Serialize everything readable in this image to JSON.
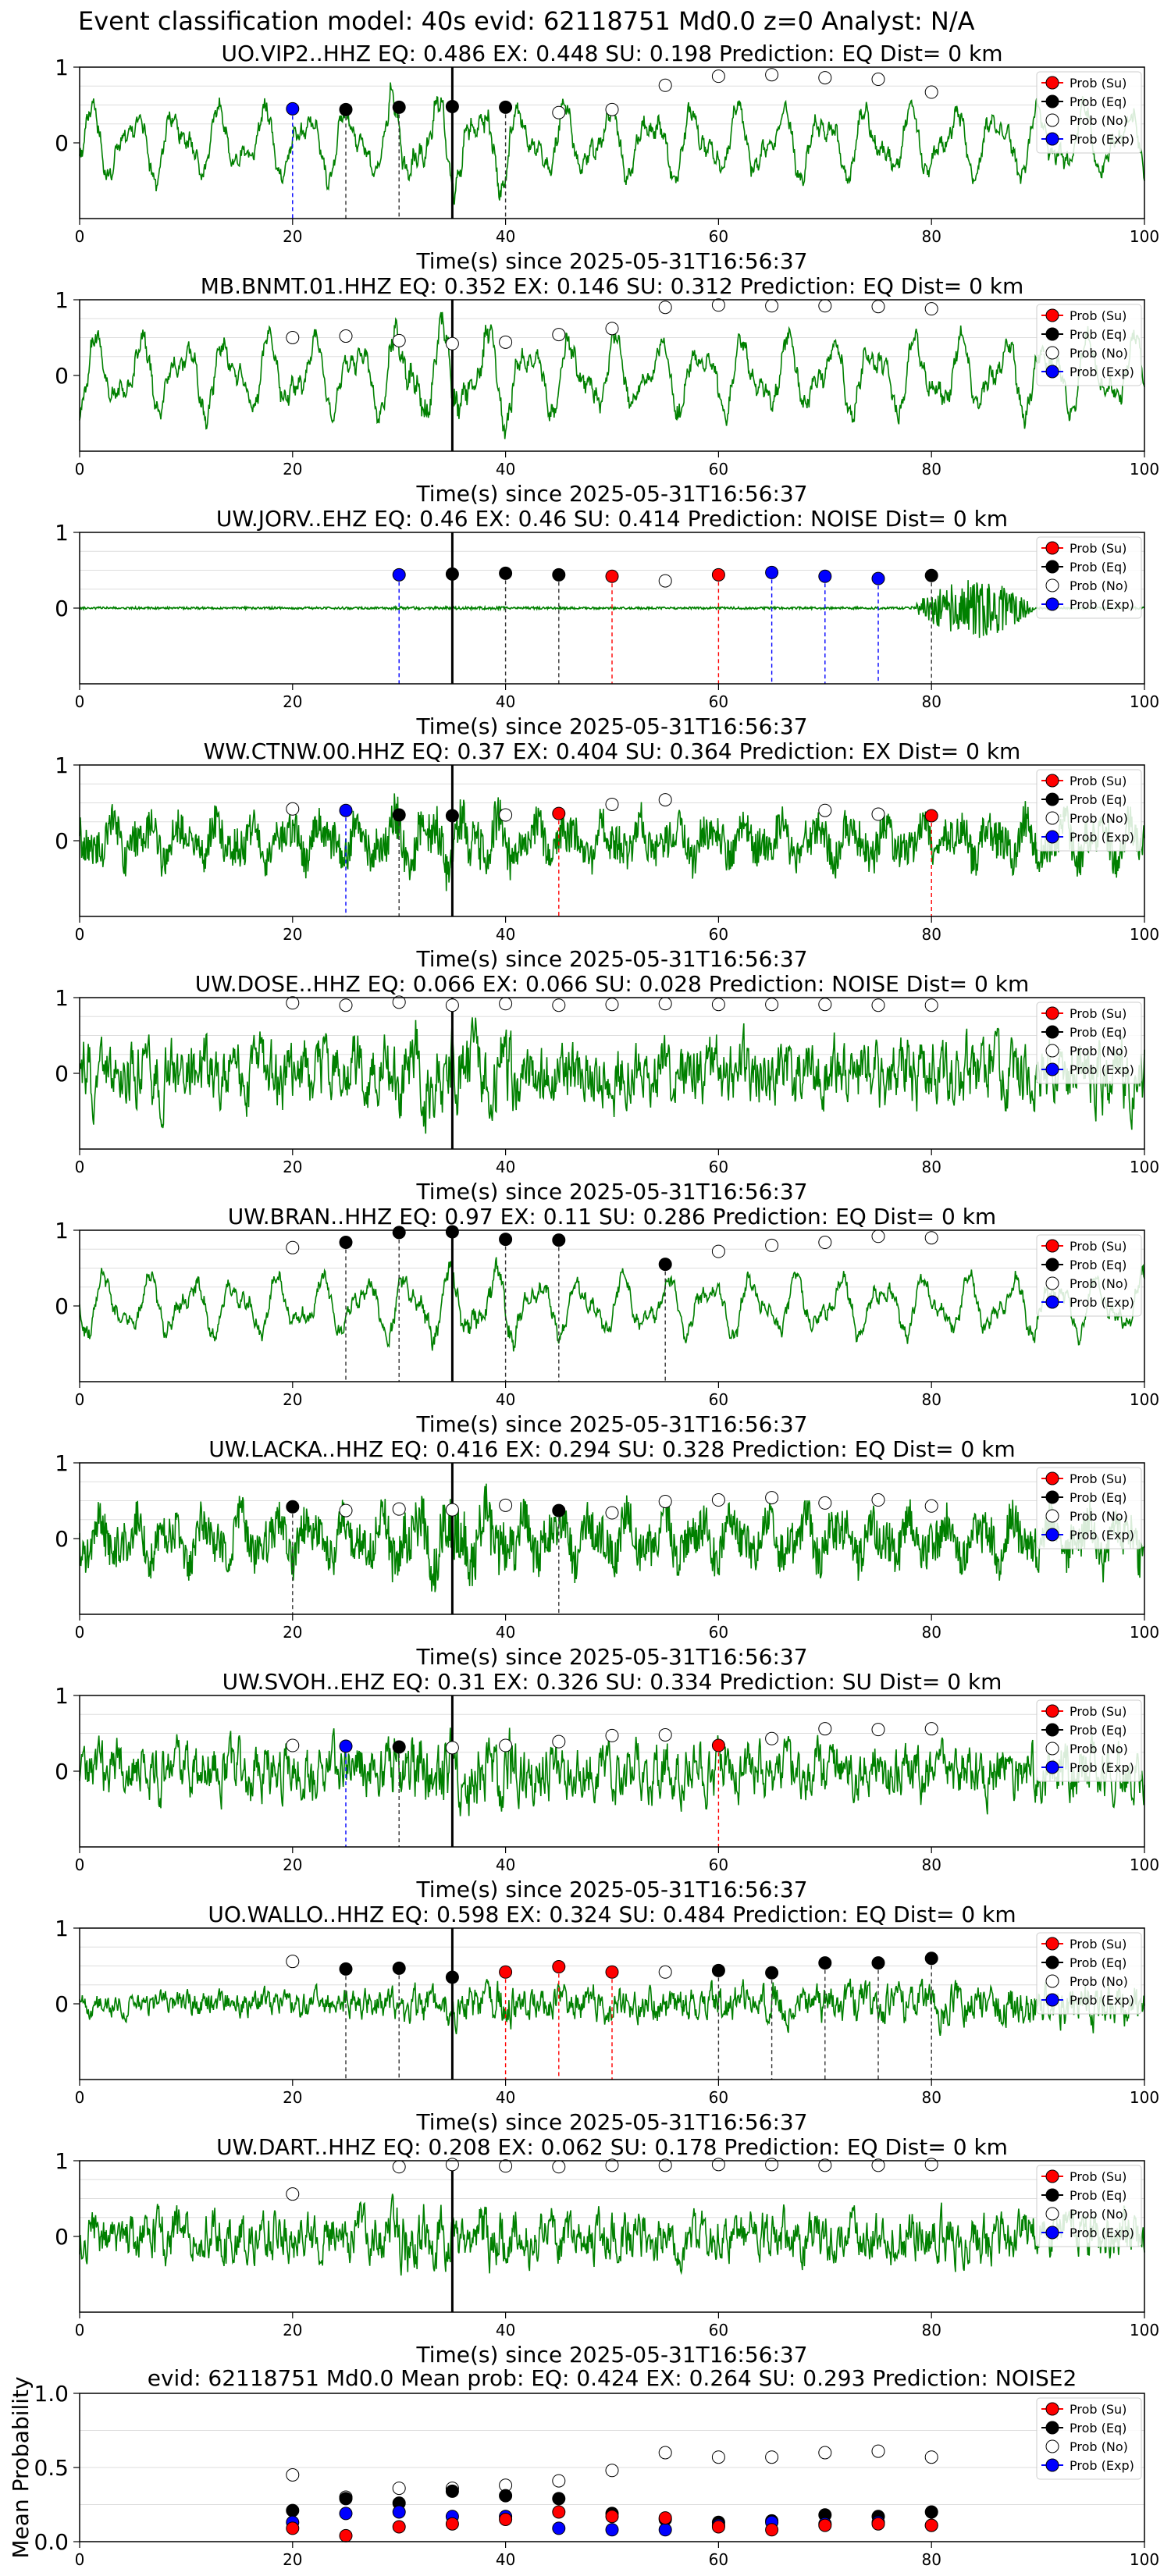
{
  "figure_title": "Event classification model: 40s evid: 62118751 Md0.0 z=0 Analyst: N/A",
  "legend": [
    "Prob (Su)",
    "Prob (Eq)",
    "Prob (No)",
    "Prob (Exp)"
  ],
  "colors": {
    "waveform": "#008000",
    "su": "#ff0000",
    "eq": "#000000",
    "no": "#ffffff",
    "exp": "#0000ff"
  },
  "chart_data": [
    {
      "type": "line",
      "title": "UO.VIP2..HHZ   EQ: 0.486  EX: 0.448  SU: 0.198   Prediction: EQ    Dist= 0 km",
      "xlabel": "Time(s) since 2025-05-31T16:56:37",
      "xlim": [
        0,
        100
      ],
      "ylim": [
        -1,
        1
      ],
      "xticks": [
        "0",
        "20",
        "40",
        "60",
        "80",
        "100"
      ],
      "yticks": [
        "0",
        "1"
      ],
      "onset_s": 35,
      "waveform": {
        "style": "smooth",
        "amplitude": 0.6,
        "seed": 3
      },
      "windows": [
        {
          "t": 20,
          "class": "exp",
          "prob": 0.45
        },
        {
          "t": 25,
          "class": "eq",
          "prob": 0.44
        },
        {
          "t": 30,
          "class": "eq",
          "prob": 0.47
        },
        {
          "t": 35,
          "class": "eq",
          "prob": 0.48
        },
        {
          "t": 40,
          "class": "eq",
          "prob": 0.47
        },
        {
          "t": 45,
          "class": "no",
          "prob": 0.4
        },
        {
          "t": 50,
          "class": "no",
          "prob": 0.44
        },
        {
          "t": 55,
          "class": "no",
          "prob": 0.76
        },
        {
          "t": 60,
          "class": "no",
          "prob": 0.88
        },
        {
          "t": 65,
          "class": "no",
          "prob": 0.9
        },
        {
          "t": 70,
          "class": "no",
          "prob": 0.86
        },
        {
          "t": 75,
          "class": "no",
          "prob": 0.84
        },
        {
          "t": 80,
          "class": "no",
          "prob": 0.67
        }
      ]
    },
    {
      "type": "line",
      "title": "MB.BNMT.01.HHZ   EQ: 0.352  EX: 0.146  SU: 0.312   Prediction: EQ    Dist= 0 km",
      "xlabel": "Time(s) since 2025-05-31T16:56:37",
      "xlim": [
        0,
        100
      ],
      "ylim": [
        -1,
        1
      ],
      "xticks": [
        "0",
        "20",
        "40",
        "60",
        "80",
        "100"
      ],
      "yticks": [
        "0",
        "1"
      ],
      "onset_s": 35,
      "waveform": {
        "style": "smooth",
        "amplitude": 0.65,
        "seed": 7
      },
      "windows": [
        {
          "t": 20,
          "class": "no",
          "prob": 0.5
        },
        {
          "t": 25,
          "class": "no",
          "prob": 0.52
        },
        {
          "t": 30,
          "class": "no",
          "prob": 0.46
        },
        {
          "t": 35,
          "class": "no",
          "prob": 0.42
        },
        {
          "t": 40,
          "class": "no",
          "prob": 0.44
        },
        {
          "t": 45,
          "class": "no",
          "prob": 0.54
        },
        {
          "t": 50,
          "class": "no",
          "prob": 0.62
        },
        {
          "t": 55,
          "class": "no",
          "prob": 0.9
        },
        {
          "t": 60,
          "class": "no",
          "prob": 0.93
        },
        {
          "t": 65,
          "class": "no",
          "prob": 0.92
        },
        {
          "t": 70,
          "class": "no",
          "prob": 0.92
        },
        {
          "t": 75,
          "class": "no",
          "prob": 0.91
        },
        {
          "t": 80,
          "class": "no",
          "prob": 0.88
        }
      ]
    },
    {
      "type": "line",
      "title": "UW.JORV..EHZ   EQ: 0.46  EX: 0.46  SU: 0.414   Prediction: NOISE    Dist= 0 km",
      "xlabel": "Time(s) since 2025-05-31T16:56:37",
      "xlim": [
        0,
        100
      ],
      "ylim": [
        -1,
        1
      ],
      "xticks": [
        "0",
        "20",
        "40",
        "60",
        "80",
        "100"
      ],
      "yticks": [
        "0",
        "1"
      ],
      "onset_s": 35,
      "waveform": {
        "style": "quiet",
        "amplitude": 0.05,
        "seed": 11,
        "burst": [
          78,
          90
        ]
      },
      "windows": [
        {
          "t": 30,
          "class": "exp",
          "prob": 0.44
        },
        {
          "t": 35,
          "class": "eq",
          "prob": 0.45
        },
        {
          "t": 40,
          "class": "eq",
          "prob": 0.46
        },
        {
          "t": 45,
          "class": "eq",
          "prob": 0.44
        },
        {
          "t": 50,
          "class": "su",
          "prob": 0.42
        },
        {
          "t": 55,
          "class": "no",
          "prob": 0.36
        },
        {
          "t": 60,
          "class": "su",
          "prob": 0.44
        },
        {
          "t": 65,
          "class": "exp",
          "prob": 0.47
        },
        {
          "t": 70,
          "class": "exp",
          "prob": 0.42
        },
        {
          "t": 75,
          "class": "exp",
          "prob": 0.39
        },
        {
          "t": 80,
          "class": "eq",
          "prob": 0.43
        }
      ]
    },
    {
      "type": "line",
      "title": "WW.CTNW.00.HHZ   EQ: 0.37  EX: 0.404  SU: 0.364   Prediction: EX    Dist= 0 km",
      "xlabel": "Time(s) since 2025-05-31T16:56:37",
      "xlim": [
        0,
        100
      ],
      "ylim": [
        -1,
        1
      ],
      "xticks": [
        "0",
        "20",
        "40",
        "60",
        "80",
        "100"
      ],
      "yticks": [
        "0",
        "1"
      ],
      "onset_s": 35,
      "waveform": {
        "style": "mixed",
        "amplitude": 0.45,
        "seed": 13
      },
      "windows": [
        {
          "t": 20,
          "class": "no",
          "prob": 0.42
        },
        {
          "t": 25,
          "class": "exp",
          "prob": 0.4
        },
        {
          "t": 30,
          "class": "eq",
          "prob": 0.34
        },
        {
          "t": 35,
          "class": "eq",
          "prob": 0.33
        },
        {
          "t": 40,
          "class": "no",
          "prob": 0.34
        },
        {
          "t": 45,
          "class": "su",
          "prob": 0.36
        },
        {
          "t": 50,
          "class": "no",
          "prob": 0.48
        },
        {
          "t": 55,
          "class": "no",
          "prob": 0.54
        },
        {
          "t": 70,
          "class": "no",
          "prob": 0.4
        },
        {
          "t": 75,
          "class": "no",
          "prob": 0.35
        },
        {
          "t": 80,
          "class": "su",
          "prob": 0.33
        }
      ]
    },
    {
      "type": "line",
      "title": "UW.DOSE..HHZ   EQ: 0.066  EX: 0.066  SU: 0.028   Prediction: NOISE    Dist= 0 km",
      "xlabel": "Time(s) since 2025-05-31T16:56:37",
      "xlim": [
        0,
        100
      ],
      "ylim": [
        -1,
        1
      ],
      "xticks": [
        "0",
        "20",
        "40",
        "60",
        "80",
        "100"
      ],
      "yticks": [
        "0",
        "1"
      ],
      "onset_s": 35,
      "waveform": {
        "style": "noise",
        "amplitude": 0.55,
        "seed": 17
      },
      "windows": [
        {
          "t": 20,
          "class": "no",
          "prob": 0.93
        },
        {
          "t": 25,
          "class": "no",
          "prob": 0.9
        },
        {
          "t": 30,
          "class": "no",
          "prob": 0.94
        },
        {
          "t": 35,
          "class": "no",
          "prob": 0.9
        },
        {
          "t": 40,
          "class": "no",
          "prob": 0.92
        },
        {
          "t": 45,
          "class": "no",
          "prob": 0.9
        },
        {
          "t": 50,
          "class": "no",
          "prob": 0.91
        },
        {
          "t": 55,
          "class": "no",
          "prob": 0.92
        },
        {
          "t": 60,
          "class": "no",
          "prob": 0.91
        },
        {
          "t": 65,
          "class": "no",
          "prob": 0.91
        },
        {
          "t": 70,
          "class": "no",
          "prob": 0.91
        },
        {
          "t": 75,
          "class": "no",
          "prob": 0.9
        },
        {
          "t": 80,
          "class": "no",
          "prob": 0.9
        }
      ]
    },
    {
      "type": "line",
      "title": "UW.BRAN..HHZ   EQ: 0.97  EX: 0.11  SU: 0.286   Prediction: EQ    Dist= 0 km",
      "xlabel": "Time(s) since 2025-05-31T16:56:37",
      "xlim": [
        0,
        100
      ],
      "ylim": [
        -1,
        1
      ],
      "xticks": [
        "0",
        "20",
        "40",
        "60",
        "80",
        "100"
      ],
      "yticks": [
        "0",
        "1"
      ],
      "onset_s": 35,
      "waveform": {
        "style": "smooth",
        "amplitude": 0.5,
        "seed": 19
      },
      "windows": [
        {
          "t": 20,
          "class": "no",
          "prob": 0.77
        },
        {
          "t": 25,
          "class": "eq",
          "prob": 0.84
        },
        {
          "t": 30,
          "class": "eq",
          "prob": 0.97
        },
        {
          "t": 35,
          "class": "eq",
          "prob": 0.98
        },
        {
          "t": 40,
          "class": "eq",
          "prob": 0.88
        },
        {
          "t": 45,
          "class": "eq",
          "prob": 0.87
        },
        {
          "t": 55,
          "class": "eq",
          "prob": 0.55
        },
        {
          "t": 60,
          "class": "no",
          "prob": 0.72
        },
        {
          "t": 65,
          "class": "no",
          "prob": 0.8
        },
        {
          "t": 70,
          "class": "no",
          "prob": 0.84
        },
        {
          "t": 75,
          "class": "no",
          "prob": 0.92
        },
        {
          "t": 80,
          "class": "no",
          "prob": 0.9
        }
      ]
    },
    {
      "type": "line",
      "title": "UW.LACKA..HHZ   EQ: 0.416  EX: 0.294  SU: 0.328   Prediction: EQ    Dist= 0 km",
      "xlabel": "Time(s) since 2025-05-31T16:56:37",
      "xlim": [
        0,
        100
      ],
      "ylim": [
        -1,
        1
      ],
      "xticks": [
        "0",
        "20",
        "40",
        "60",
        "80",
        "100"
      ],
      "yticks": [
        "0",
        "1"
      ],
      "onset_s": 35,
      "waveform": {
        "style": "mixed",
        "amplitude": 0.5,
        "seed": 23
      },
      "windows": [
        {
          "t": 20,
          "class": "eq",
          "prob": 0.42
        },
        {
          "t": 25,
          "class": "no",
          "prob": 0.37
        },
        {
          "t": 30,
          "class": "no",
          "prob": 0.39
        },
        {
          "t": 35,
          "class": "no",
          "prob": 0.38
        },
        {
          "t": 40,
          "class": "no",
          "prob": 0.44
        },
        {
          "t": 45,
          "class": "eq",
          "prob": 0.37
        },
        {
          "t": 50,
          "class": "no",
          "prob": 0.34
        },
        {
          "t": 55,
          "class": "no",
          "prob": 0.49
        },
        {
          "t": 60,
          "class": "no",
          "prob": 0.51
        },
        {
          "t": 65,
          "class": "no",
          "prob": 0.54
        },
        {
          "t": 70,
          "class": "no",
          "prob": 0.47
        },
        {
          "t": 75,
          "class": "no",
          "prob": 0.51
        },
        {
          "t": 80,
          "class": "no",
          "prob": 0.43
        }
      ]
    },
    {
      "type": "line",
      "title": "UW.SVOH..EHZ   EQ: 0.31  EX: 0.326  SU: 0.334   Prediction: SU    Dist= 0 km",
      "xlabel": "Time(s) since 2025-05-31T16:56:37",
      "xlim": [
        0,
        100
      ],
      "ylim": [
        -1,
        1
      ],
      "xticks": [
        "0",
        "20",
        "40",
        "60",
        "80",
        "100"
      ],
      "yticks": [
        "0",
        "1"
      ],
      "onset_s": 35,
      "waveform": {
        "style": "noise",
        "amplitude": 0.45,
        "seed": 29
      },
      "windows": [
        {
          "t": 20,
          "class": "no",
          "prob": 0.34
        },
        {
          "t": 25,
          "class": "exp",
          "prob": 0.33
        },
        {
          "t": 30,
          "class": "eq",
          "prob": 0.32
        },
        {
          "t": 35,
          "class": "no",
          "prob": 0.31
        },
        {
          "t": 40,
          "class": "no",
          "prob": 0.34
        },
        {
          "t": 45,
          "class": "no",
          "prob": 0.39
        },
        {
          "t": 50,
          "class": "no",
          "prob": 0.47
        },
        {
          "t": 55,
          "class": "no",
          "prob": 0.48
        },
        {
          "t": 60,
          "class": "su",
          "prob": 0.34
        },
        {
          "t": 65,
          "class": "no",
          "prob": 0.43
        },
        {
          "t": 70,
          "class": "no",
          "prob": 0.56
        },
        {
          "t": 75,
          "class": "no",
          "prob": 0.55
        },
        {
          "t": 80,
          "class": "no",
          "prob": 0.56
        }
      ]
    },
    {
      "type": "line",
      "title": "UO.WALLO..HHZ   EQ: 0.598  EX: 0.324  SU: 0.484   Prediction: EQ    Dist= 0 km",
      "xlabel": "Time(s) since 2025-05-31T16:56:37",
      "xlim": [
        0,
        100
      ],
      "ylim": [
        -1,
        1
      ],
      "xticks": [
        "0",
        "20",
        "40",
        "60",
        "80",
        "100"
      ],
      "yticks": [
        "0",
        "1"
      ],
      "onset_s": 35,
      "waveform": {
        "style": "noise",
        "amplitude": 0.3,
        "seed": 31,
        "grow": true
      },
      "windows": [
        {
          "t": 20,
          "class": "no",
          "prob": 0.56
        },
        {
          "t": 25,
          "class": "eq",
          "prob": 0.46
        },
        {
          "t": 30,
          "class": "eq",
          "prob": 0.47
        },
        {
          "t": 35,
          "class": "eq",
          "prob": 0.35
        },
        {
          "t": 40,
          "class": "su",
          "prob": 0.42
        },
        {
          "t": 45,
          "class": "su",
          "prob": 0.49
        },
        {
          "t": 50,
          "class": "su",
          "prob": 0.42
        },
        {
          "t": 55,
          "class": "no",
          "prob": 0.42
        },
        {
          "t": 60,
          "class": "eq",
          "prob": 0.44
        },
        {
          "t": 65,
          "class": "eq",
          "prob": 0.41
        },
        {
          "t": 70,
          "class": "eq",
          "prob": 0.54
        },
        {
          "t": 75,
          "class": "eq",
          "prob": 0.54
        },
        {
          "t": 80,
          "class": "eq",
          "prob": 0.6
        }
      ]
    },
    {
      "type": "line",
      "title": "UW.DART..HHZ   EQ: 0.208  EX: 0.062  SU: 0.178   Prediction: EQ    Dist= 0 km",
      "xlabel": "Time(s) since 2025-05-31T16:56:37",
      "xlim": [
        0,
        100
      ],
      "ylim": [
        -1,
        1
      ],
      "xticks": [
        "0",
        "20",
        "40",
        "60",
        "80",
        "100"
      ],
      "yticks": [
        "0",
        "1"
      ],
      "onset_s": 35,
      "waveform": {
        "style": "noise",
        "amplitude": 0.4,
        "seed": 37
      },
      "windows": [
        {
          "t": 20,
          "class": "no",
          "prob": 0.56
        },
        {
          "t": 30,
          "class": "no",
          "prob": 0.92
        },
        {
          "t": 35,
          "class": "no",
          "prob": 0.95
        },
        {
          "t": 40,
          "class": "no",
          "prob": 0.93
        },
        {
          "t": 45,
          "class": "no",
          "prob": 0.92
        },
        {
          "t": 50,
          "class": "no",
          "prob": 0.94
        },
        {
          "t": 55,
          "class": "no",
          "prob": 0.94
        },
        {
          "t": 60,
          "class": "no",
          "prob": 0.95
        },
        {
          "t": 65,
          "class": "no",
          "prob": 0.95
        },
        {
          "t": 70,
          "class": "no",
          "prob": 0.94
        },
        {
          "t": 75,
          "class": "no",
          "prob": 0.94
        },
        {
          "t": 80,
          "class": "no",
          "prob": 0.95
        }
      ]
    },
    {
      "type": "scatter",
      "title": "evid: 62118751  Md0.0   Mean prob:   EQ: 0.424  EX: 0.264  SU: 0.293   Prediction: NOISE2",
      "ylabel": "Mean Probability",
      "xlim": [
        0,
        100
      ],
      "ylim": [
        0,
        1
      ],
      "xticks": [
        "0",
        "20",
        "40",
        "60",
        "80",
        "100"
      ],
      "yticks": [
        {
          "v": 0,
          "label": "0.0"
        },
        {
          "v": 0.5,
          "label": "0.5"
        },
        {
          "v": 1,
          "label": "1.0"
        }
      ],
      "x": [
        20,
        25,
        30,
        35,
        40,
        45,
        50,
        55,
        60,
        65,
        70,
        75,
        80
      ],
      "series": [
        {
          "name": "Prob (No)",
          "class": "no",
          "values": [
            0.45,
            0.3,
            0.36,
            0.36,
            0.38,
            0.41,
            0.48,
            0.6,
            0.57,
            0.57,
            0.6,
            0.61,
            0.57
          ]
        },
        {
          "name": "Prob (Eq)",
          "class": "eq",
          "values": [
            0.21,
            0.29,
            0.26,
            0.34,
            0.31,
            0.29,
            0.19,
            0.15,
            0.13,
            0.14,
            0.18,
            0.17,
            0.2
          ]
        },
        {
          "name": "Prob (Exp)",
          "class": "exp",
          "values": [
            0.13,
            0.19,
            0.2,
            0.17,
            0.17,
            0.09,
            0.08,
            0.08,
            0.11,
            0.13,
            0.12,
            0.13,
            0.11
          ]
        },
        {
          "name": "Prob (Su)",
          "class": "su",
          "values": [
            0.09,
            0.04,
            0.1,
            0.12,
            0.15,
            0.2,
            0.17,
            0.16,
            0.1,
            0.08,
            0.11,
            0.12,
            0.11
          ]
        }
      ]
    }
  ]
}
